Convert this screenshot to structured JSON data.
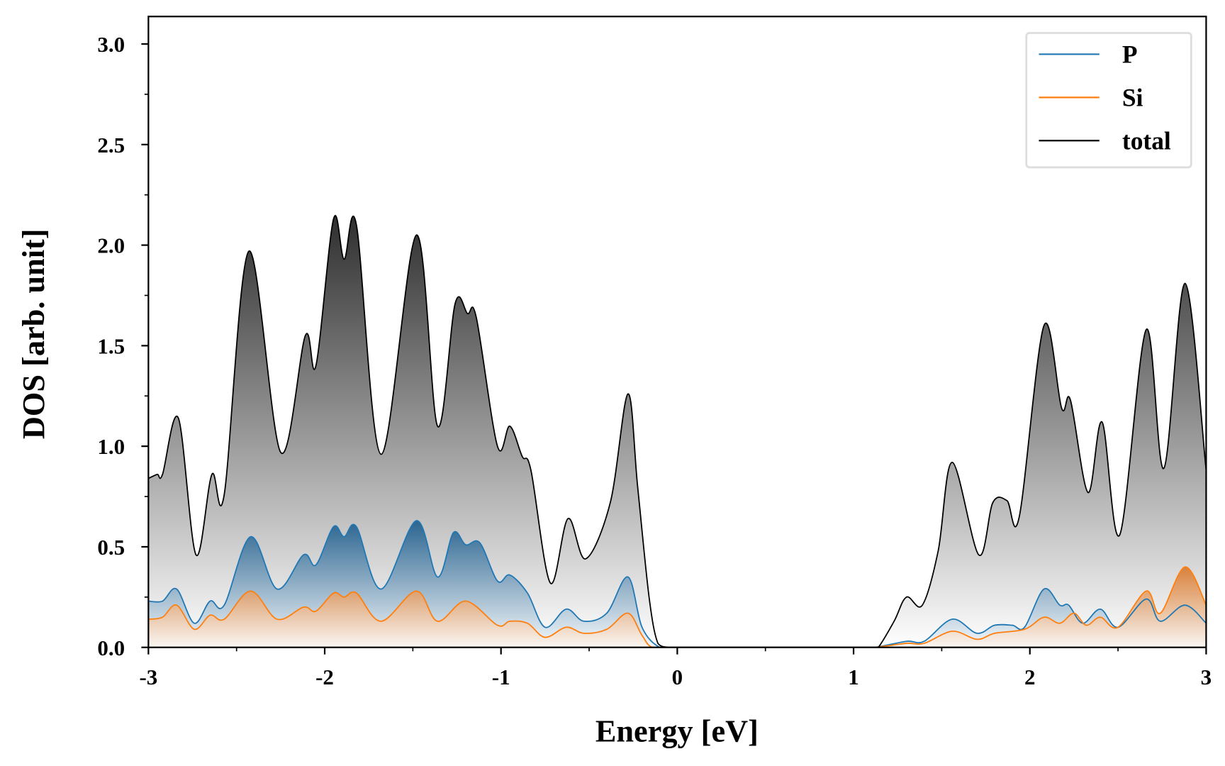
{
  "chart_data": {
    "type": "area",
    "xlabel": "Energy [eV]",
    "ylabel": "DOS [arb. unit]",
    "xlim": [
      -3,
      3
    ],
    "ylim": [
      0,
      3.1
    ],
    "xticks": [
      -3,
      -2,
      -1,
      0,
      1,
      2,
      3
    ],
    "xtick_labels": [
      "-3",
      "-2",
      "-1",
      "0",
      "1",
      "2",
      "3"
    ],
    "yticks": [
      0,
      0.5,
      1.0,
      1.5,
      2.0,
      2.5,
      3.0
    ],
    "ytick_labels": [
      "0.0",
      "0.5",
      "1.0",
      "1.5",
      "2.0",
      "2.5",
      "3.0"
    ],
    "grid": false,
    "legend_position": "top-right",
    "series": [
      {
        "name": "P",
        "color": "#1f77b4",
        "fill": "gradient-blue",
        "points": [
          [
            -3,
            0.23
          ],
          [
            -2.92,
            0.23
          ],
          [
            -2.84,
            0.29
          ],
          [
            -2.74,
            0.12
          ],
          [
            -2.65,
            0.23
          ],
          [
            -2.57,
            0.21
          ],
          [
            -2.42,
            0.55
          ],
          [
            -2.27,
            0.29
          ],
          [
            -2.12,
            0.46
          ],
          [
            -2.05,
            0.41
          ],
          [
            -1.95,
            0.6
          ],
          [
            -1.89,
            0.55
          ],
          [
            -1.82,
            0.6
          ],
          [
            -1.68,
            0.29
          ],
          [
            -1.48,
            0.63
          ],
          [
            -1.36,
            0.35
          ],
          [
            -1.27,
            0.57
          ],
          [
            -1.2,
            0.51
          ],
          [
            -1.12,
            0.52
          ],
          [
            -1.02,
            0.33
          ],
          [
            -0.95,
            0.36
          ],
          [
            -0.85,
            0.27
          ],
          [
            -0.75,
            0.1
          ],
          [
            -0.63,
            0.19
          ],
          [
            -0.53,
            0.13
          ],
          [
            -0.4,
            0.17
          ],
          [
            -0.28,
            0.35
          ],
          [
            -0.2,
            0.1
          ],
          [
            -0.1,
            0.0
          ],
          [
            0,
            0
          ],
          [
            1.0,
            0
          ],
          [
            1.12,
            0
          ],
          [
            1.3,
            0.03
          ],
          [
            1.4,
            0.03
          ],
          [
            1.56,
            0.14
          ],
          [
            1.7,
            0.07
          ],
          [
            1.8,
            0.11
          ],
          [
            1.9,
            0.11
          ],
          [
            1.97,
            0.1
          ],
          [
            2.08,
            0.29
          ],
          [
            2.17,
            0.21
          ],
          [
            2.22,
            0.21
          ],
          [
            2.3,
            0.12
          ],
          [
            2.4,
            0.19
          ],
          [
            2.5,
            0.1
          ],
          [
            2.66,
            0.24
          ],
          [
            2.74,
            0.13
          ],
          [
            2.88,
            0.21
          ],
          [
            3.0,
            0.12
          ]
        ]
      },
      {
        "name": "Si",
        "color": "#ff7f0e",
        "fill": "gradient-orange",
        "points": [
          [
            -3,
            0.14
          ],
          [
            -2.92,
            0.15
          ],
          [
            -2.84,
            0.21
          ],
          [
            -2.74,
            0.09
          ],
          [
            -2.65,
            0.16
          ],
          [
            -2.57,
            0.14
          ],
          [
            -2.42,
            0.28
          ],
          [
            -2.27,
            0.14
          ],
          [
            -2.12,
            0.2
          ],
          [
            -2.05,
            0.18
          ],
          [
            -1.95,
            0.27
          ],
          [
            -1.89,
            0.25
          ],
          [
            -1.82,
            0.27
          ],
          [
            -1.68,
            0.13
          ],
          [
            -1.48,
            0.28
          ],
          [
            -1.36,
            0.13
          ],
          [
            -1.2,
            0.23
          ],
          [
            -1.02,
            0.11
          ],
          [
            -0.95,
            0.13
          ],
          [
            -0.85,
            0.12
          ],
          [
            -0.75,
            0.05
          ],
          [
            -0.63,
            0.1
          ],
          [
            -0.53,
            0.07
          ],
          [
            -0.4,
            0.09
          ],
          [
            -0.28,
            0.17
          ],
          [
            -0.2,
            0.06
          ],
          [
            -0.14,
            0.0
          ],
          [
            0,
            0
          ],
          [
            1.0,
            0
          ],
          [
            1.12,
            0
          ],
          [
            1.3,
            0.02
          ],
          [
            1.4,
            0.02
          ],
          [
            1.56,
            0.08
          ],
          [
            1.7,
            0.04
          ],
          [
            1.8,
            0.07
          ],
          [
            1.97,
            0.09
          ],
          [
            2.08,
            0.15
          ],
          [
            2.17,
            0.12
          ],
          [
            2.25,
            0.17
          ],
          [
            2.32,
            0.11
          ],
          [
            2.4,
            0.15
          ],
          [
            2.5,
            0.1
          ],
          [
            2.66,
            0.28
          ],
          [
            2.74,
            0.17
          ],
          [
            2.88,
            0.4
          ],
          [
            3.0,
            0.21
          ]
        ]
      },
      {
        "name": "total",
        "color": "#000000",
        "fill": "gradient-gray",
        "points": [
          [
            -3,
            0.84
          ],
          [
            -2.95,
            0.86
          ],
          [
            -2.92,
            0.86
          ],
          [
            -2.83,
            1.14
          ],
          [
            -2.73,
            0.46
          ],
          [
            -2.64,
            0.86
          ],
          [
            -2.57,
            0.76
          ],
          [
            -2.43,
            1.97
          ],
          [
            -2.25,
            0.97
          ],
          [
            -2.11,
            1.55
          ],
          [
            -2.05,
            1.4
          ],
          [
            -1.95,
            2.13
          ],
          [
            -1.89,
            1.93
          ],
          [
            -1.82,
            2.1
          ],
          [
            -1.68,
            0.96
          ],
          [
            -1.48,
            2.05
          ],
          [
            -1.36,
            1.1
          ],
          [
            -1.26,
            1.71
          ],
          [
            -1.19,
            1.66
          ],
          [
            -1.14,
            1.64
          ],
          [
            -1.02,
            1.0
          ],
          [
            -0.95,
            1.1
          ],
          [
            -0.88,
            0.95
          ],
          [
            -0.83,
            0.88
          ],
          [
            -0.72,
            0.32
          ],
          [
            -0.62,
            0.64
          ],
          [
            -0.52,
            0.44
          ],
          [
            -0.38,
            0.72
          ],
          [
            -0.28,
            1.26
          ],
          [
            -0.225,
            0.8
          ],
          [
            -0.16,
            0.25
          ],
          [
            -0.11,
            0.02
          ],
          [
            -0.05,
            0
          ],
          [
            0,
            0
          ],
          [
            1.0,
            0
          ],
          [
            1.1,
            0
          ],
          [
            1.14,
            0.0
          ],
          [
            1.23,
            0.13
          ],
          [
            1.3,
            0.25
          ],
          [
            1.39,
            0.21
          ],
          [
            1.48,
            0.48
          ],
          [
            1.56,
            0.92
          ],
          [
            1.71,
            0.46
          ],
          [
            1.79,
            0.72
          ],
          [
            1.87,
            0.73
          ],
          [
            1.94,
            0.65
          ],
          [
            2.08,
            1.6
          ],
          [
            2.18,
            1.19
          ],
          [
            2.23,
            1.23
          ],
          [
            2.33,
            0.77
          ],
          [
            2.41,
            1.12
          ],
          [
            2.51,
            0.56
          ],
          [
            2.66,
            1.58
          ],
          [
            2.76,
            0.89
          ],
          [
            2.88,
            1.81
          ],
          [
            3.0,
            0.88
          ]
        ]
      }
    ]
  }
}
